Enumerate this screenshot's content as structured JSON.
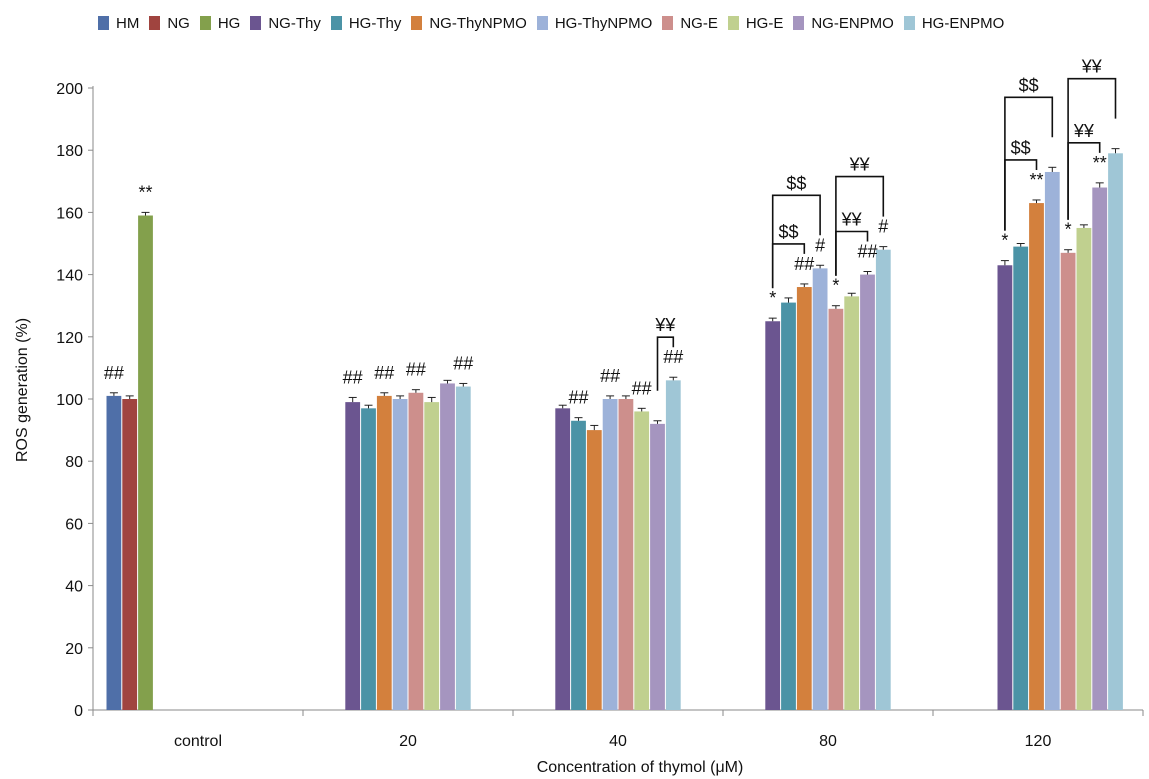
{
  "chart_data": {
    "type": "bar",
    "xlabel": "Concentration of thymol (μM)",
    "ylabel": "ROS generation (%)",
    "ylim": [
      0,
      200
    ],
    "yticks": [
      0,
      20,
      40,
      60,
      80,
      100,
      120,
      140,
      160,
      180,
      200
    ],
    "categories": [
      "control",
      "20",
      "40",
      "80",
      "120"
    ],
    "legend_position": "top",
    "grid": false,
    "series": [
      {
        "name": "HM",
        "color": "#4f6fa8",
        "values": [
          101,
          null,
          null,
          null,
          null
        ],
        "errors": [
          1,
          null,
          null,
          null,
          null
        ]
      },
      {
        "name": "NG",
        "color": "#a0443f",
        "values": [
          100,
          null,
          null,
          null,
          null
        ],
        "errors": [
          1,
          null,
          null,
          null,
          null
        ]
      },
      {
        "name": "HG",
        "color": "#83a04c",
        "values": [
          159,
          null,
          null,
          null,
          null
        ],
        "errors": [
          1,
          null,
          null,
          null,
          null
        ]
      },
      {
        "name": "NG-Thy",
        "color": "#6b5590",
        "values": [
          null,
          99,
          97,
          125,
          143
        ],
        "errors": [
          null,
          1.5,
          1,
          1,
          1.5
        ]
      },
      {
        "name": "HG-Thy",
        "color": "#4b93a6",
        "values": [
          null,
          97,
          93,
          131,
          149
        ],
        "errors": [
          null,
          1,
          1,
          1.5,
          1
        ]
      },
      {
        "name": "NG-ThyNPMO",
        "color": "#d3803d",
        "values": [
          null,
          101,
          90,
          136,
          163
        ],
        "errors": [
          null,
          1,
          1.5,
          1,
          1
        ]
      },
      {
        "name": "HG-ThyNPMO",
        "color": "#9db2d9",
        "values": [
          null,
          100,
          100,
          142,
          173
        ],
        "errors": [
          null,
          1,
          1,
          1,
          1.5
        ]
      },
      {
        "name": "NG-E",
        "color": "#cd8f8c",
        "values": [
          null,
          102,
          100,
          129,
          147
        ],
        "errors": [
          null,
          1,
          1,
          1,
          1
        ]
      },
      {
        "name": "HG-E",
        "color": "#c0d08f",
        "values": [
          null,
          99,
          96,
          133,
          155
        ],
        "errors": [
          null,
          1.5,
          1,
          1,
          1
        ]
      },
      {
        "name": "NG-ENPMO",
        "color": "#a595bf",
        "values": [
          null,
          105,
          92,
          140,
          168
        ],
        "errors": [
          null,
          1,
          1,
          1,
          1.5
        ]
      },
      {
        "name": "HG-ENPMO",
        "color": "#9fc6d6",
        "values": [
          null,
          104,
          106,
          148,
          179
        ],
        "errors": [
          null,
          1,
          1,
          1,
          1.5
        ]
      }
    ],
    "annotations": [
      {
        "text": "##",
        "category": "control",
        "series": "HM"
      },
      {
        "text": "**",
        "category": "control",
        "series": "HG"
      },
      {
        "text": "##",
        "category": "20",
        "series": "NG-Thy"
      },
      {
        "text": "##",
        "category": "20",
        "series": "NG-ThyNPMO"
      },
      {
        "text": "##",
        "category": "20",
        "series": "NG-E"
      },
      {
        "text": "##",
        "category": "20",
        "series": "HG-ENPMO"
      },
      {
        "text": "##",
        "category": "40",
        "series": "HG-Thy"
      },
      {
        "text": "##",
        "category": "40",
        "series": "HG-ThyNPMO"
      },
      {
        "text": "##",
        "category": "40",
        "series": "HG-E"
      },
      {
        "text": "##",
        "category": "40",
        "series": "HG-ENPMO"
      },
      {
        "text": "*",
        "category": "80",
        "series": "NG-Thy"
      },
      {
        "text": "##",
        "category": "80",
        "series": "NG-ThyNPMO"
      },
      {
        "text": "#",
        "category": "80",
        "series": "HG-ThyNPMO"
      },
      {
        "text": "*",
        "category": "80",
        "series": "NG-E"
      },
      {
        "text": "##",
        "category": "80",
        "series": "NG-ENPMO"
      },
      {
        "text": "#",
        "category": "80",
        "series": "HG-ENPMO"
      },
      {
        "text": "*",
        "category": "120",
        "series": "NG-Thy"
      },
      {
        "text": "**",
        "category": "120",
        "series": "NG-ThyNPMO"
      },
      {
        "text": "*",
        "category": "120",
        "series": "NG-E"
      },
      {
        "text": "**",
        "category": "120",
        "series": "NG-ENPMO"
      }
    ],
    "brackets": [
      {
        "text": "¥¥",
        "category": "40",
        "from": "NG-ENPMO",
        "to": "HG-ENPMO",
        "level": 0
      },
      {
        "text": "$$",
        "category": "80",
        "from": "NG-Thy",
        "to": "NG-ThyNPMO",
        "level": 0
      },
      {
        "text": "$$",
        "category": "80",
        "from": "NG-Thy",
        "to": "HG-ThyNPMO",
        "level": 1
      },
      {
        "text": "¥¥",
        "category": "80",
        "from": "NG-E",
        "to": "NG-ENPMO",
        "level": 0
      },
      {
        "text": "¥¥",
        "category": "80",
        "from": "NG-E",
        "to": "HG-ENPMO",
        "level": 1
      },
      {
        "text": "$$",
        "category": "120",
        "from": "NG-Thy",
        "to": "NG-ThyNPMO",
        "level": 0
      },
      {
        "text": "$$",
        "category": "120",
        "from": "NG-Thy",
        "to": "HG-ThyNPMO",
        "level": 1
      },
      {
        "text": "¥¥",
        "category": "120",
        "from": "NG-E",
        "to": "NG-ENPMO",
        "level": 0
      },
      {
        "text": "¥¥",
        "category": "120",
        "from": "NG-E",
        "to": "HG-ENPMO",
        "level": 1
      }
    ]
  }
}
